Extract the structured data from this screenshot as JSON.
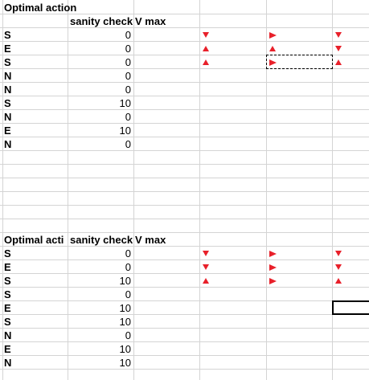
{
  "table1": {
    "header_title": "Optimal action",
    "sanity_header": "sanity check",
    "vmax_header": "V max",
    "rows": [
      {
        "label": "S",
        "value": "0",
        "arrows": [
          "down",
          "right",
          "down"
        ]
      },
      {
        "label": "E",
        "value": "0",
        "arrows": [
          "up",
          "up",
          "down"
        ]
      },
      {
        "label": "S",
        "value": "0",
        "arrows": [
          "up",
          "right",
          "up"
        ]
      },
      {
        "label": "N",
        "value": "0",
        "arrows": [
          "",
          "",
          ""
        ]
      },
      {
        "label": "N",
        "value": "0",
        "arrows": [
          "",
          "",
          ""
        ]
      },
      {
        "label": "S",
        "value": "10",
        "arrows": [
          "",
          "",
          ""
        ]
      },
      {
        "label": "N",
        "value": "0",
        "arrows": [
          "",
          "",
          ""
        ]
      },
      {
        "label": "E",
        "value": "10",
        "arrows": [
          "",
          "",
          ""
        ]
      },
      {
        "label": "N",
        "value": "0",
        "arrows": [
          "",
          "",
          ""
        ]
      }
    ]
  },
  "table2": {
    "header_title": "Optimal acti",
    "sanity_header": "sanity check",
    "vmax_header": "V max",
    "rows": [
      {
        "label": "S",
        "value": "0",
        "arrows": [
          "down",
          "right",
          "down"
        ]
      },
      {
        "label": "E",
        "value": "0",
        "arrows": [
          "down",
          "right",
          "down"
        ]
      },
      {
        "label": "S",
        "value": "10",
        "arrows": [
          "up",
          "right",
          "up"
        ]
      },
      {
        "label": "S",
        "value": "0",
        "arrows": [
          "",
          "",
          ""
        ]
      },
      {
        "label": "E",
        "value": "10",
        "arrows": [
          "",
          "",
          ""
        ]
      },
      {
        "label": "S",
        "value": "10",
        "arrows": [
          "",
          "",
          ""
        ]
      },
      {
        "label": "N",
        "value": "0",
        "arrows": [
          "",
          "",
          ""
        ]
      },
      {
        "label": "E",
        "value": "10",
        "arrows": [
          "",
          "",
          ""
        ]
      },
      {
        "label": "N",
        "value": "10",
        "arrows": [
          "",
          "",
          ""
        ]
      }
    ]
  },
  "colors": {
    "arrow": "#e8202a",
    "grid": "#d4d4d4"
  }
}
